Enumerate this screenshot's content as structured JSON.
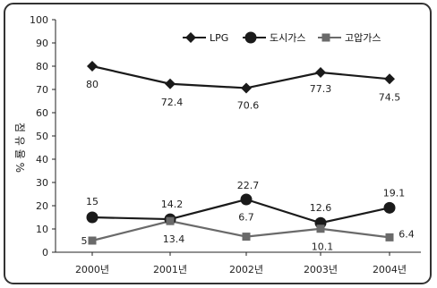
{
  "chart_data": {
    "type": "line",
    "title": "",
    "xlabel": "",
    "ylabel": "점 유 율 %",
    "ylim": [
      0,
      100
    ],
    "yticks": [
      0,
      10,
      20,
      30,
      40,
      50,
      60,
      70,
      80,
      90,
      100
    ],
    "categories": [
      "2000년",
      "2001년",
      "2002년",
      "2003년",
      "2004년"
    ],
    "grid": false,
    "legend_position": "top-right",
    "series": [
      {
        "name": "LPG",
        "values": [
          80,
          72.4,
          70.6,
          77.3,
          74.5
        ],
        "labels": [
          "80",
          "72.4",
          "70.6",
          "77.3",
          "74.5"
        ],
        "color": "#1a1a1a",
        "marker": "diamond"
      },
      {
        "name": "도시가스",
        "values": [
          15,
          14.2,
          22.7,
          12.6,
          19.1
        ],
        "labels": [
          "15",
          "14.2",
          "22.7",
          "12.6",
          "19.1"
        ],
        "color": "#1a1a1a",
        "marker": "circle"
      },
      {
        "name": "고압가스",
        "values": [
          5,
          13.4,
          6.7,
          10.1,
          6.4
        ],
        "labels": [
          "5",
          "13.4",
          "6.7",
          "10.1",
          "6.4"
        ],
        "color": "#6a6a6a",
        "marker": "square"
      }
    ]
  }
}
